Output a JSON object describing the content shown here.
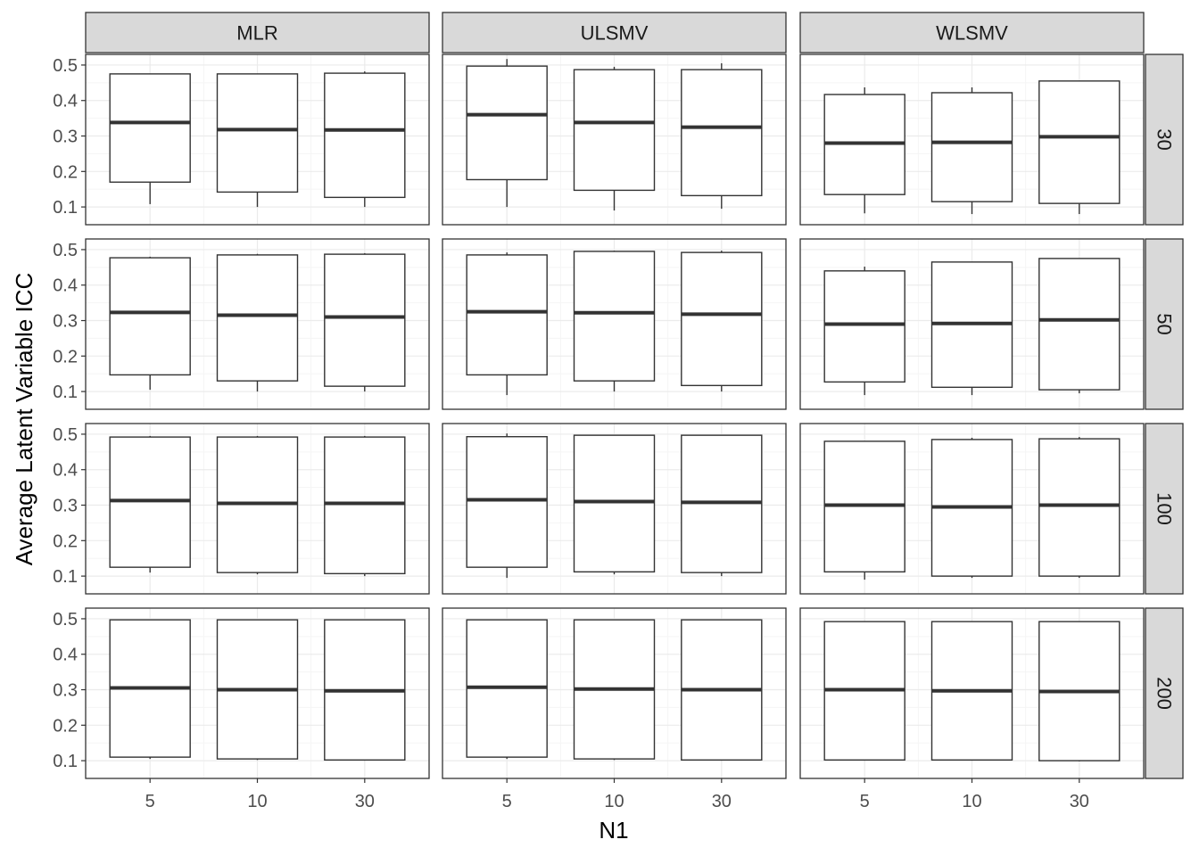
{
  "chart_data": {
    "type": "boxplot",
    "xlabel": "N1",
    "ylabel": "Average Latent Variable ICC",
    "x_categories": [
      "5",
      "10",
      "30"
    ],
    "y_ticks": [
      "0.1",
      "0.2",
      "0.3",
      "0.4",
      "0.5"
    ],
    "ylim": [
      0.05,
      0.53
    ],
    "grid": true,
    "column_facets": [
      "MLR",
      "ULSMV",
      "WLSMV"
    ],
    "row_facets": [
      "30",
      "50",
      "100",
      "200"
    ],
    "panels": [
      {
        "row": "30",
        "col": "MLR",
        "boxes": [
          {
            "x": "5",
            "whisker_low": 0.108,
            "q1": 0.17,
            "median": 0.338,
            "q3": 0.475,
            "whisker_high": 0.475
          },
          {
            "x": "10",
            "whisker_low": 0.1,
            "q1": 0.142,
            "median": 0.318,
            "q3": 0.475,
            "whisker_high": 0.475
          },
          {
            "x": "30",
            "whisker_low": 0.1,
            "q1": 0.127,
            "median": 0.317,
            "q3": 0.477,
            "whisker_high": 0.482
          }
        ]
      },
      {
        "row": "30",
        "col": "ULSMV",
        "boxes": [
          {
            "x": "5",
            "whisker_low": 0.1,
            "q1": 0.177,
            "median": 0.36,
            "q3": 0.497,
            "whisker_high": 0.517
          },
          {
            "x": "10",
            "whisker_low": 0.09,
            "q1": 0.147,
            "median": 0.338,
            "q3": 0.487,
            "whisker_high": 0.495
          },
          {
            "x": "30",
            "whisker_low": 0.095,
            "q1": 0.132,
            "median": 0.325,
            "q3": 0.487,
            "whisker_high": 0.505
          }
        ]
      },
      {
        "row": "30",
        "col": "WLSMV",
        "boxes": [
          {
            "x": "5",
            "whisker_low": 0.082,
            "q1": 0.135,
            "median": 0.28,
            "q3": 0.417,
            "whisker_high": 0.437
          },
          {
            "x": "10",
            "whisker_low": 0.08,
            "q1": 0.115,
            "median": 0.282,
            "q3": 0.422,
            "whisker_high": 0.437
          },
          {
            "x": "30",
            "whisker_low": 0.08,
            "q1": 0.11,
            "median": 0.298,
            "q3": 0.455,
            "whisker_high": 0.455
          }
        ]
      },
      {
        "row": "50",
        "col": "MLR",
        "boxes": [
          {
            "x": "5",
            "whisker_low": 0.105,
            "q1": 0.147,
            "median": 0.323,
            "q3": 0.477,
            "whisker_high": 0.48
          },
          {
            "x": "10",
            "whisker_low": 0.1,
            "q1": 0.13,
            "median": 0.315,
            "q3": 0.485,
            "whisker_high": 0.488
          },
          {
            "x": "30",
            "whisker_low": 0.1,
            "q1": 0.115,
            "median": 0.31,
            "q3": 0.487,
            "whisker_high": 0.49
          }
        ]
      },
      {
        "row": "50",
        "col": "ULSMV",
        "boxes": [
          {
            "x": "5",
            "whisker_low": 0.09,
            "q1": 0.147,
            "median": 0.325,
            "q3": 0.485,
            "whisker_high": 0.492
          },
          {
            "x": "10",
            "whisker_low": 0.1,
            "q1": 0.13,
            "median": 0.322,
            "q3": 0.495,
            "whisker_high": 0.497
          },
          {
            "x": "30",
            "whisker_low": 0.1,
            "q1": 0.117,
            "median": 0.318,
            "q3": 0.492,
            "whisker_high": 0.497
          }
        ]
      },
      {
        "row": "50",
        "col": "WLSMV",
        "boxes": [
          {
            "x": "5",
            "whisker_low": 0.09,
            "q1": 0.127,
            "median": 0.29,
            "q3": 0.44,
            "whisker_high": 0.452
          },
          {
            "x": "10",
            "whisker_low": 0.09,
            "q1": 0.112,
            "median": 0.292,
            "q3": 0.465,
            "whisker_high": 0.465
          },
          {
            "x": "30",
            "whisker_low": 0.095,
            "q1": 0.105,
            "median": 0.302,
            "q3": 0.475,
            "whisker_high": 0.475
          }
        ]
      },
      {
        "row": "100",
        "col": "MLR",
        "boxes": [
          {
            "x": "5",
            "whisker_low": 0.11,
            "q1": 0.125,
            "median": 0.313,
            "q3": 0.492,
            "whisker_high": 0.495
          },
          {
            "x": "10",
            "whisker_low": 0.105,
            "q1": 0.11,
            "median": 0.305,
            "q3": 0.492,
            "whisker_high": 0.495
          },
          {
            "x": "30",
            "whisker_low": 0.1,
            "q1": 0.107,
            "median": 0.305,
            "q3": 0.492,
            "whisker_high": 0.495
          }
        ]
      },
      {
        "row": "100",
        "col": "ULSMV",
        "boxes": [
          {
            "x": "5",
            "whisker_low": 0.095,
            "q1": 0.125,
            "median": 0.315,
            "q3": 0.493,
            "whisker_high": 0.502
          },
          {
            "x": "10",
            "whisker_low": 0.105,
            "q1": 0.112,
            "median": 0.31,
            "q3": 0.497,
            "whisker_high": 0.497
          },
          {
            "x": "30",
            "whisker_low": 0.1,
            "q1": 0.11,
            "median": 0.308,
            "q3": 0.497,
            "whisker_high": 0.497
          }
        ]
      },
      {
        "row": "100",
        "col": "WLSMV",
        "boxes": [
          {
            "x": "5",
            "whisker_low": 0.09,
            "q1": 0.112,
            "median": 0.3,
            "q3": 0.48,
            "whisker_high": 0.48
          },
          {
            "x": "10",
            "whisker_low": 0.095,
            "q1": 0.1,
            "median": 0.295,
            "q3": 0.485,
            "whisker_high": 0.49
          },
          {
            "x": "30",
            "whisker_low": 0.095,
            "q1": 0.1,
            "median": 0.3,
            "q3": 0.487,
            "whisker_high": 0.492
          }
        ]
      },
      {
        "row": "200",
        "col": "MLR",
        "boxes": [
          {
            "x": "5",
            "whisker_low": 0.105,
            "q1": 0.11,
            "median": 0.305,
            "q3": 0.497,
            "whisker_high": 0.497
          },
          {
            "x": "10",
            "whisker_low": 0.102,
            "q1": 0.105,
            "median": 0.3,
            "q3": 0.497,
            "whisker_high": 0.497
          },
          {
            "x": "30",
            "whisker_low": 0.1,
            "q1": 0.102,
            "median": 0.297,
            "q3": 0.497,
            "whisker_high": 0.497
          }
        ]
      },
      {
        "row": "200",
        "col": "ULSMV",
        "boxes": [
          {
            "x": "5",
            "whisker_low": 0.105,
            "q1": 0.11,
            "median": 0.307,
            "q3": 0.497,
            "whisker_high": 0.497
          },
          {
            "x": "10",
            "whisker_low": 0.102,
            "q1": 0.105,
            "median": 0.302,
            "q3": 0.497,
            "whisker_high": 0.497
          },
          {
            "x": "30",
            "whisker_low": 0.1,
            "q1": 0.102,
            "median": 0.3,
            "q3": 0.497,
            "whisker_high": 0.497
          }
        ]
      },
      {
        "row": "200",
        "col": "WLSMV",
        "boxes": [
          {
            "x": "5",
            "whisker_low": 0.1,
            "q1": 0.102,
            "median": 0.3,
            "q3": 0.492,
            "whisker_high": 0.492
          },
          {
            "x": "10",
            "whisker_low": 0.1,
            "q1": 0.102,
            "median": 0.297,
            "q3": 0.492,
            "whisker_high": 0.492
          },
          {
            "x": "30",
            "whisker_low": 0.098,
            "q1": 0.1,
            "median": 0.295,
            "q3": 0.492,
            "whisker_high": 0.492
          }
        ]
      }
    ],
    "colors": {
      "box_fill": "#ffffff",
      "box_stroke": "#333333",
      "strip_fill": "#d9d9d9",
      "strip_stroke": "#333333",
      "major_grid": "#ebebeb",
      "minor_grid": "#f5f5f5"
    }
  }
}
